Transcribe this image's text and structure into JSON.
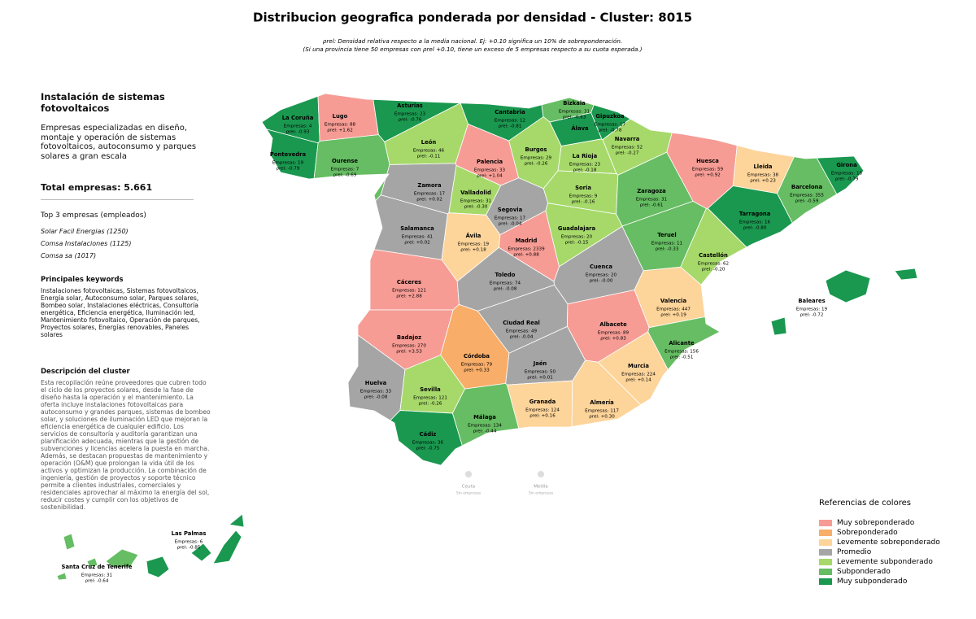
{
  "title": "Distribucion geografica ponderada por densidad - Cluster: 8015",
  "subtitle": [
    "ρrel: Densidad relativa respecto a la media nacional. Ej: +0.10 significa un 10% de sobreponderación.",
    "(Si una provincia tiene 50 empresas con ρrel +0.10, tiene un exceso de 5 empresas respecto a su cuota esperada.)"
  ],
  "sidebar": {
    "heading": "Instalación de sistemas fotovoltaicos",
    "description": "Empresas especializadas en diseño, montaje y operación de sistemas fotovoltaicos, autoconsumo y parques solares a gran escala",
    "total": "Total empresas: 5.661",
    "top_title": "Top 3 empresas (empleados)",
    "top": [
      "Solar Facil Energias (1250)",
      "Comsa Instalaciones (1125)",
      "Comsa sa (1017)"
    ],
    "keywords_title": "Principales keywords",
    "keywords": "Instalaciones fotovoltaicas, Sistemas fotovoltaicos, Energía solar, Autoconsumo solar, Parques solares, Bombeo solar, Instalaciones eléctricas, Consultoría energética, Eficiencia energética, Iluminación led, Mantenimiento fotovoltaico, Operación de parques, Proyectos solares, Energías renovables, Paneles solares",
    "cluster_title": "Descripción del cluster",
    "cluster_text": "Esta recopilación reúne proveedores que cubren todo el ciclo de los proyectos solares, desde la fase de diseño hasta la operación y el mantenimiento. La oferta incluye instalaciones fotovoltaicas para autoconsumo y grandes parques, sistemas de bombeo solar, y soluciones de iluminación LED que mejoran la eficiencia energética de cualquier edificio. Los servicios de consultoría y auditoría garantizan una planificación adecuada, mientras que la gestión de subvenciones y licencias acelera la puesta en marcha. Además, se destacan propuestas de mantenimiento y operación (O&M) que prolongan la vida útil de los activos y optimizan la producción. La combinación de ingeniería, gestión de proyectos y soporte técnico permite a clientes industriales, comerciales y residenciales aprovechar al máximo la energía del sol, reducir costes y cumplir con los objetivos de sostenibilidad."
  },
  "legend": {
    "title": "Referencias de colores",
    "items": [
      {
        "name": "Muy sobreponderado",
        "color": "#f69c95"
      },
      {
        "name": "Sobreponderado",
        "color": "#f8ad69"
      },
      {
        "name": "Levemente sobreponderado",
        "color": "#fdd49a"
      },
      {
        "name": "Promedio",
        "color": "#a5a5a5"
      },
      {
        "name": "Levemente subponderado",
        "color": "#a6d96a"
      },
      {
        "name": "Subponderado",
        "color": "#66bd63"
      },
      {
        "name": "Muy subponderado",
        "color": "#1a9850"
      }
    ]
  },
  "provinces": [
    {
      "name": "La Coruña",
      "count_label": "Empresas: 4",
      "rho_label": "ρrel: -0.93",
      "color": "#1a9850"
    },
    {
      "name": "Lugo",
      "count_label": "Empresas: 88",
      "rho_label": "ρrel: +1.62",
      "color": "#f69c95"
    },
    {
      "name": "Asturias",
      "count_label": "Empresas: 23",
      "rho_label": "ρrel: -0.76",
      "color": "#1a9850"
    },
    {
      "name": "Cantabria",
      "count_label": "Empresas: 12",
      "rho_label": "ρrel: -0.81",
      "color": "#1a9850"
    },
    {
      "name": "Bizkaia",
      "count_label": "Empresas: 31",
      "rho_label": "ρrel: -0.63",
      "color": "#66bd63"
    },
    {
      "name": "Gipuzkoa",
      "count_label": "Empresas: 17",
      "rho_label": "ρrel: -0.78",
      "color": "#1a9850"
    },
    {
      "name": "Álava",
      "color": "#1a9850"
    },
    {
      "name": "Pontevedra",
      "count_label": "Empresas: 19",
      "rho_label": "ρrel: -0.79",
      "color": "#1a9850"
    },
    {
      "name": "Ourense",
      "count_label": "Empresas: 7",
      "rho_label": "ρrel: -0.69",
      "color": "#66bd63"
    },
    {
      "name": "León",
      "count_label": "Empresas: 46",
      "rho_label": "ρrel: -0.11",
      "color": "#a6d96a"
    },
    {
      "name": "Palencia",
      "count_label": "Empresas: 33",
      "rho_label": "ρrel: +1.04",
      "color": "#f69c95"
    },
    {
      "name": "Burgos",
      "count_label": "Empresas: 29",
      "rho_label": "ρrel: -0.26",
      "color": "#a6d96a"
    },
    {
      "name": "La Rioja",
      "count_label": "Empresas: 23",
      "rho_label": "ρrel: -0.18",
      "color": "#a6d96a"
    },
    {
      "name": "Navarra",
      "count_label": "Empresas: 52",
      "rho_label": "ρrel: -0.27",
      "color": "#a6d96a"
    },
    {
      "name": "Huesca",
      "count_label": "Empresas: 59",
      "rho_label": "ρrel: +0.92",
      "color": "#f69c95"
    },
    {
      "name": "Lleida",
      "count_label": "Empresas: 38",
      "rho_label": "ρrel: +0.23",
      "color": "#fdd49a"
    },
    {
      "name": "Girona",
      "count_label": "Empresas: 18",
      "rho_label": "ρrel: -0.79",
      "color": "#1a9850"
    },
    {
      "name": "Barcelona",
      "count_label": "Empresas: 355",
      "rho_label": "ρrel: -0.59",
      "color": "#66bd63"
    },
    {
      "name": "Tarragona",
      "count_label": "Empresas: 16",
      "rho_label": "ρrel: -0.80",
      "color": "#1a9850"
    },
    {
      "name": "Zamora",
      "count_label": "Empresas: 17",
      "rho_label": "ρrel: +0.02",
      "color": "#a5a5a5"
    },
    {
      "name": "Valladolid",
      "count_label": "Empresas: 31",
      "rho_label": "ρrel: -0.30",
      "color": "#a6d96a"
    },
    {
      "name": "Soria",
      "count_label": "Empresas: 9",
      "rho_label": "ρrel: -0.16",
      "color": "#a6d96a"
    },
    {
      "name": "Zaragoza",
      "count_label": "Empresas: 31",
      "rho_label": "ρrel: -0.61",
      "color": "#66bd63"
    },
    {
      "name": "Segovia",
      "count_label": "Empresas: 17",
      "rho_label": "ρrel: -0.04",
      "color": "#a5a5a5"
    },
    {
      "name": "Salamanca",
      "count_label": "Empresas: 41",
      "rho_label": "ρrel: +0.02",
      "color": "#a5a5a5"
    },
    {
      "name": "Ávila",
      "count_label": "Empresas: 19",
      "rho_label": "ρrel: +0.18",
      "color": "#fdd49a"
    },
    {
      "name": "Madrid",
      "count_label": "Empresas: 2339",
      "rho_label": "ρrel: +0.88",
      "color": "#f69c95"
    },
    {
      "name": "Guadalajara",
      "count_label": "Empresas: 20",
      "rho_label": "ρrel: -0.15",
      "color": "#a6d96a"
    },
    {
      "name": "Teruel",
      "count_label": "Empresas: 11",
      "rho_label": "ρrel: -0.33",
      "color": "#66bd63"
    },
    {
      "name": "Castellón",
      "count_label": "Empresas: 62",
      "rho_label": "ρrel: -0.20",
      "color": "#a6d96a"
    },
    {
      "name": "Cáceres",
      "count_label": "Empresas: 121",
      "rho_label": "ρrel: +2.88",
      "color": "#f69c95"
    },
    {
      "name": "Toledo",
      "count_label": "Empresas: 74",
      "rho_label": "ρrel: -0.08",
      "color": "#a5a5a5"
    },
    {
      "name": "Cuenca",
      "count_label": "Empresas: 20",
      "rho_label": "ρrel: -0.00",
      "color": "#a5a5a5"
    },
    {
      "name": "Valencia",
      "count_label": "Empresas: 447",
      "rho_label": "ρrel: +0.19",
      "color": "#fdd49a"
    },
    {
      "name": "Badajoz",
      "count_label": "Empresas: 270",
      "rho_label": "ρrel: +3.53",
      "color": "#f69c95"
    },
    {
      "name": "Ciudad Real",
      "count_label": "Empresas: 49",
      "rho_label": "ρrel: -0.04",
      "color": "#a5a5a5"
    },
    {
      "name": "Albacete",
      "count_label": "Empresas: 89",
      "rho_label": "ρrel: +0.83",
      "color": "#f69c95"
    },
    {
      "name": "Alicante",
      "count_label": "Empresas: 156",
      "rho_label": "ρrel: -0.51",
      "color": "#66bd63"
    },
    {
      "name": "Córdoba",
      "count_label": "Empresas: 79",
      "rho_label": "ρrel: +0.33",
      "color": "#f8ad69"
    },
    {
      "name": "Jaén",
      "count_label": "Empresas: 50",
      "rho_label": "ρrel: +0.01",
      "color": "#a5a5a5"
    },
    {
      "name": "Murcia",
      "count_label": "Empresas: 224",
      "rho_label": "ρrel: +0.14",
      "color": "#fdd49a"
    },
    {
      "name": "Huelva",
      "count_label": "Empresas: 33",
      "rho_label": "ρrel: -0.08",
      "color": "#a5a5a5"
    },
    {
      "name": "Sevilla",
      "count_label": "Empresas: 121",
      "rho_label": "ρrel: -0.26",
      "color": "#a6d96a"
    },
    {
      "name": "Granada",
      "count_label": "Empresas: 124",
      "rho_label": "ρrel: +0.16",
      "color": "#fdd49a"
    },
    {
      "name": "Almería",
      "count_label": "Empresas: 117",
      "rho_label": "ρrel: +0.30",
      "color": "#fdd49a"
    },
    {
      "name": "Málaga",
      "count_label": "Empresas: 134",
      "rho_label": "ρrel: -0.44",
      "color": "#66bd63"
    },
    {
      "name": "Cádiz",
      "count_label": "Empresas: 36",
      "rho_label": "ρrel: -0.75",
      "color": "#1a9850"
    },
    {
      "name": "Baleares",
      "count_label": "Empresas: 19",
      "rho_label": "ρrel: -0.72",
      "color": "#1a9850"
    },
    {
      "name": "Las Palmas",
      "count_label": "Empresas: 6",
      "rho_label": "ρrel: -0.85",
      "color": "#1a9850"
    },
    {
      "name": "Santa Cruz de Tenerife",
      "count_label": "Empresas: 31",
      "rho_label": "ρrel: -0.64",
      "color": "#66bd63"
    }
  ],
  "cities": [
    {
      "name": "Ceuta",
      "note": "Sin empresas"
    },
    {
      "name": "Melilla",
      "note": "Sin empresas"
    }
  ]
}
